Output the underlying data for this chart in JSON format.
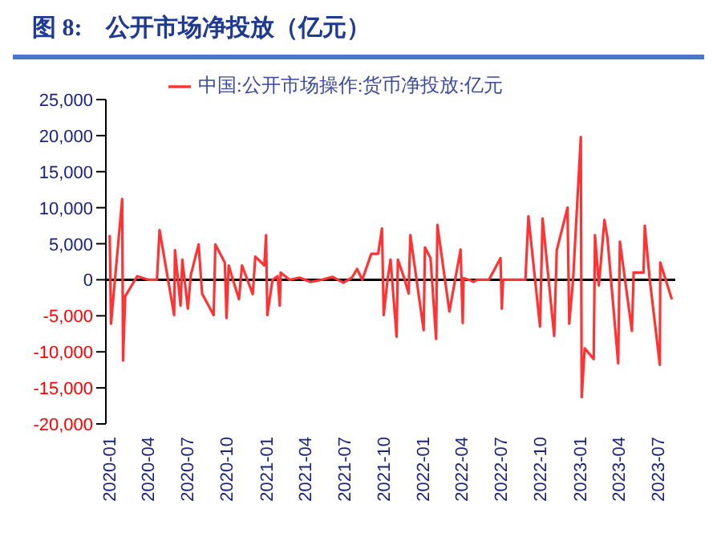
{
  "chart_data": {
    "type": "line",
    "title": "图 8:　公开市场净投放（亿元）",
    "legend": "top",
    "marker": "none",
    "line_style": "solid",
    "grid": false,
    "xlim": [
      "2019-12-25",
      "2023-08-12"
    ],
    "xticks": [
      "2020-01",
      "2020-04",
      "2020-07",
      "2020-10",
      "2021-01",
      "2021-04",
      "2021-07",
      "2021-10",
      "2022-01",
      "2022-04",
      "2022-07",
      "2022-10",
      "2023-01",
      "2023-04",
      "2023-07"
    ],
    "ylim": [
      -20000,
      25000
    ],
    "yticks": [
      {
        "value": -20000,
        "label": "-20,000"
      },
      {
        "value": -15000,
        "label": "-15,000"
      },
      {
        "value": -10000,
        "label": "-10,000"
      },
      {
        "value": -5000,
        "label": "-5,000"
      },
      {
        "value": 0,
        "label": "0"
      },
      {
        "value": 5000,
        "label": "5,000"
      },
      {
        "value": 10000,
        "label": "10,000"
      },
      {
        "value": 15000,
        "label": "15,000"
      },
      {
        "value": 20000,
        "label": "20,000"
      },
      {
        "value": 25000,
        "label": "25,000"
      }
    ],
    "ref_lines": [
      {
        "axis": "y",
        "value": 0,
        "color": "#000000"
      }
    ],
    "series": [
      {
        "name": "中国:公开市场操作:货币净投放:亿元",
        "color": "#ff3333",
        "x": [
          "2020-01-03",
          "2020-01-06",
          "2020-02-01",
          "2020-02-03",
          "2020-02-08",
          "2020-03-07",
          "2020-04-02",
          "2020-04-22",
          "2020-04-28",
          "2020-06-01",
          "2020-06-03",
          "2020-06-16",
          "2020-06-20",
          "2020-07-03",
          "2020-07-10",
          "2020-07-28",
          "2020-08-05",
          "2020-09-01",
          "2020-09-05",
          "2020-09-27",
          "2020-10-01",
          "2020-10-06",
          "2020-10-16",
          "2020-10-30",
          "2020-11-06",
          "2020-12-01",
          "2020-12-07",
          "2020-12-28",
          "2021-01-01",
          "2021-01-04",
          "2021-01-16",
          "2021-01-28",
          "2021-02-02",
          "2021-02-04",
          "2021-02-25",
          "2021-03-20",
          "2021-04-15",
          "2021-05-10",
          "2021-06-05",
          "2021-06-30",
          "2021-07-20",
          "2021-08-01",
          "2021-08-13",
          "2021-09-03",
          "2021-09-19",
          "2021-09-28",
          "2021-10-02",
          "2021-10-11",
          "2021-10-18",
          "2021-11-01",
          "2021-11-04",
          "2021-11-20",
          "2021-11-29",
          "2021-12-03",
          "2022-01-03",
          "2022-01-06",
          "2022-01-19",
          "2022-02-01",
          "2022-02-04",
          "2022-03-04",
          "2022-03-30",
          "2022-04-04",
          "2022-04-06",
          "2022-04-19",
          "2022-04-29",
          "2022-05-08",
          "2022-06-04",
          "2022-07-01",
          "2022-07-04",
          "2022-07-07",
          "2022-08-28",
          "2022-09-04",
          "2022-10-01",
          "2022-10-07",
          "2022-11-03",
          "2022-11-09",
          "2022-12-04",
          "2022-12-08",
          "2022-12-17",
          "2023-01-04",
          "2023-01-06",
          "2023-01-13",
          "2023-02-03",
          "2023-02-06",
          "2023-02-15",
          "2023-02-28",
          "2023-03-07",
          "2023-04-01",
          "2023-04-05",
          "2023-05-03",
          "2023-05-07",
          "2023-05-30",
          "2023-06-02",
          "2023-06-13",
          "2023-07-07",
          "2023-07-08",
          "2023-08-04"
        ],
        "values": [
          6200,
          -6100,
          11200,
          -11200,
          -2300,
          500,
          0,
          0,
          6900,
          -4900,
          4100,
          -3600,
          2800,
          -4000,
          700,
          4900,
          -1900,
          -4900,
          4900,
          2400,
          -5300,
          2000,
          0,
          -2700,
          2000,
          -2000,
          3200,
          2000,
          6200,
          -4900,
          0,
          500,
          -3600,
          1000,
          0,
          300,
          -300,
          0,
          400,
          -400,
          300,
          1500,
          0,
          3600,
          3600,
          7100,
          -4900,
          0,
          2800,
          -7900,
          2800,
          0,
          -1900,
          6200,
          -7000,
          4500,
          3000,
          -8200,
          7600,
          -4400,
          4200,
          -6000,
          200,
          0,
          -300,
          0,
          0,
          3000,
          -4000,
          0,
          0,
          8800,
          -6500,
          8500,
          -7800,
          4100,
          10000,
          -6100,
          0,
          19800,
          -16300,
          -9500,
          -11000,
          6200,
          -800,
          8300,
          5800,
          -11600,
          5300,
          -7100,
          1000,
          1000,
          7500,
          300,
          -11800,
          2400,
          -2700
        ]
      }
    ]
  }
}
